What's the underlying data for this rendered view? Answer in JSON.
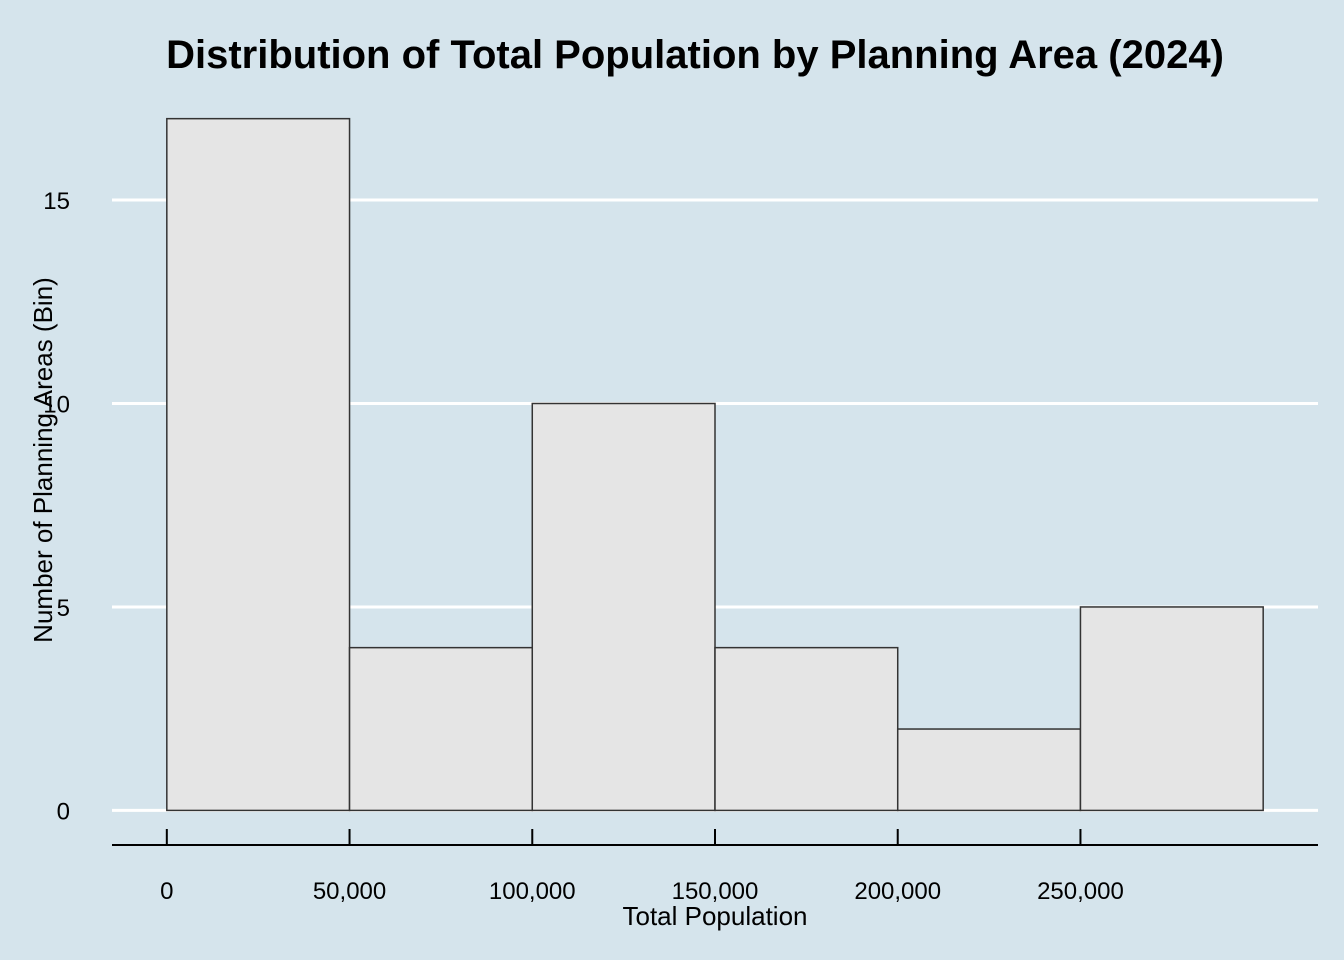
{
  "chart_data": {
    "type": "bar",
    "title": "Distribution of Total Population by Planning Area (2024)",
    "xlabel": "Total Population",
    "ylabel": "Number of Planning Areas (Bin)",
    "bins": [
      {
        "from": 0,
        "to": 50000,
        "count": 17
      },
      {
        "from": 50000,
        "to": 100000,
        "count": 4
      },
      {
        "from": 100000,
        "to": 150000,
        "count": 10
      },
      {
        "from": 150000,
        "to": 200000,
        "count": 4
      },
      {
        "from": 200000,
        "to": 250000,
        "count": 2
      },
      {
        "from": 250000,
        "to": 300000,
        "count": 5
      }
    ],
    "xlim": [
      -15000,
      315000
    ],
    "ylim": [
      -0.85,
      17.95
    ],
    "x_ticks": [
      {
        "value": 0,
        "label": "0"
      },
      {
        "value": 50000,
        "label": "50,000"
      },
      {
        "value": 100000,
        "label": "100,000"
      },
      {
        "value": 150000,
        "label": "150,000"
      },
      {
        "value": 200000,
        "label": "200,000"
      },
      {
        "value": 250000,
        "label": "250,000"
      }
    ],
    "y_ticks": [
      {
        "value": 0,
        "label": "0"
      },
      {
        "value": 5,
        "label": "5"
      },
      {
        "value": 10,
        "label": "10"
      },
      {
        "value": 15,
        "label": "15"
      }
    ],
    "grid": "horizontal-major",
    "legend": "none",
    "colors": {
      "background": "#d5e4ec",
      "bar_fill": "#e5e5e5",
      "bar_outline": "#333333",
      "grid": "#ffffff"
    }
  }
}
